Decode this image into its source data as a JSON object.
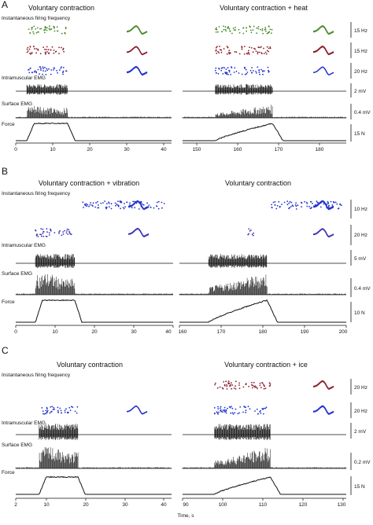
{
  "colors": {
    "trace": "#111111",
    "green": "#4a8a2a",
    "red": "#8b1c2c",
    "blue": "#2233cc",
    "violet": "#3a33b8"
  },
  "xlabel": "Time, s",
  "panels": [
    {
      "label": "A",
      "row_labels": [
        "Instantaneous firing frequency",
        "Intramuscular EMG",
        "Surface EMG",
        "Force"
      ],
      "left": {
        "title": "Voluntary contraction",
        "ticks": [
          "0",
          "10",
          "20",
          "30",
          "40"
        ],
        "xlim": [
          0,
          42
        ],
        "activity": [
          3,
          14
        ],
        "force_shape": "hold"
      },
      "right": {
        "title": "Voluntary contraction + heat",
        "ticks": [
          "150",
          "160",
          "170",
          "180"
        ],
        "xlim": [
          146,
          186
        ],
        "activity": [
          154,
          168
        ],
        "force_shape": "ramp"
      },
      "units": [
        {
          "color": "green",
          "scale": "15 Hz"
        },
        {
          "color": "red",
          "scale": "15 Hz"
        },
        {
          "color": "blue",
          "scale": "20 Hz"
        }
      ],
      "scales": {
        "emg": "2 mV",
        "surface": "0.4 mV",
        "force": "15 N"
      }
    },
    {
      "label": "B",
      "row_labels": [
        "Instantaneous firing frequency",
        "Intramuscular EMG",
        "Surface EMG",
        "Force"
      ],
      "left": {
        "title": "Voluntary contraction + vibration",
        "ticks": [
          "0",
          "10",
          "20",
          "30",
          "40"
        ],
        "xlim": [
          0,
          40
        ],
        "activity": [
          5,
          15
        ],
        "force_shape": "hold"
      },
      "right": {
        "title": "Voluntary contraction",
        "ticks": [
          "160",
          "170",
          "180",
          "190",
          "200"
        ],
        "xlim": [
          160,
          200
        ],
        "activity": [
          167,
          181
        ],
        "force_shape": "ramp"
      },
      "units": [
        {
          "color": "blue",
          "scale": "10 Hz"
        },
        {
          "color": "violet",
          "scale": "20 Hz"
        }
      ],
      "scales": {
        "emg": "5 mV",
        "surface": "0.4 mV",
        "force": "10 N"
      }
    },
    {
      "label": "C",
      "row_labels": [
        "Instantaneous firing frequency",
        "Intramuscular EMG",
        "Surface EMG",
        "Force"
      ],
      "left": {
        "title": "Voluntary contraction",
        "ticks": [
          "2",
          "10",
          "20",
          "30",
          "40"
        ],
        "xlim": [
          2,
          42
        ],
        "activity": [
          8,
          18
        ],
        "force_shape": "hold"
      },
      "right": {
        "title": "Voluntary contraction + ice",
        "ticks": [
          "90",
          "100",
          "110",
          "120",
          "130"
        ],
        "xlim": [
          90,
          131
        ],
        "activity": [
          98,
          112
        ],
        "force_shape": "ramp"
      },
      "units": [
        {
          "color": "red",
          "scale": "20 Hz"
        },
        {
          "color": "blue",
          "scale": "20 Hz"
        }
      ],
      "scales": {
        "emg": "2 mV",
        "surface": "0.2 mV",
        "force": "15 N"
      }
    }
  ]
}
